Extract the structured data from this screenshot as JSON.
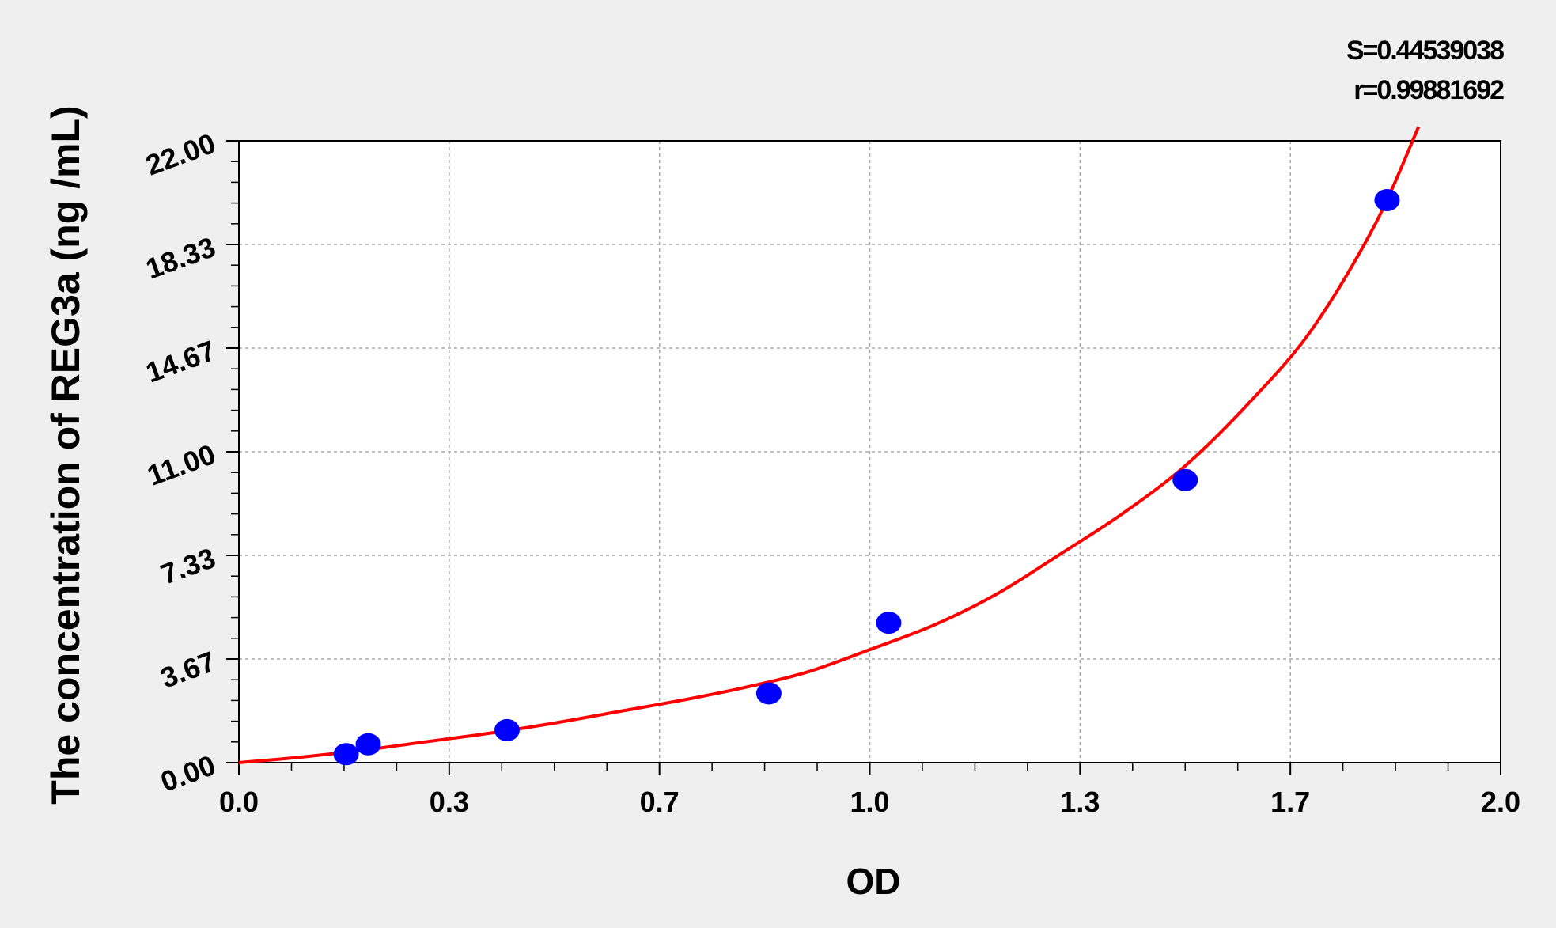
{
  "chart_data": {
    "type": "scatter",
    "title": "",
    "xlabel": "OD",
    "ylabel": "The concentration of REG3a (ng /mL)",
    "xlim": [
      0.0,
      2.0
    ],
    "ylim": [
      0.0,
      22.0
    ],
    "x_ticks": [
      "0.0",
      "0.3",
      "0.7",
      "1.0",
      "1.3",
      "1.7",
      "2.0"
    ],
    "y_ticks": [
      "0.00",
      "3.67",
      "7.33",
      "11.00",
      "14.67",
      "18.33",
      "22.00"
    ],
    "grid": true,
    "annotations": {
      "s_value": "S=0.44539038",
      "r_value": "r=0.99881692"
    },
    "series": [
      {
        "kind": "points",
        "color": "#0000ff",
        "points": [
          {
            "x": 0.17,
            "y": 0.3
          },
          {
            "x": 0.205,
            "y": 0.65
          },
          {
            "x": 0.425,
            "y": 1.15
          },
          {
            "x": 0.84,
            "y": 2.45
          },
          {
            "x": 1.03,
            "y": 4.95
          },
          {
            "x": 1.5,
            "y": 10.0
          },
          {
            "x": 1.82,
            "y": 19.9
          }
        ]
      },
      {
        "kind": "fit-curve",
        "color": "#ff0000",
        "points": [
          {
            "x": 0.0,
            "y": 0.0
          },
          {
            "x": 0.1,
            "y": 0.2
          },
          {
            "x": 0.2,
            "y": 0.45
          },
          {
            "x": 0.3,
            "y": 0.75
          },
          {
            "x": 0.4,
            "y": 1.05
          },
          {
            "x": 0.5,
            "y": 1.4
          },
          {
            "x": 0.6,
            "y": 1.8
          },
          {
            "x": 0.7,
            "y": 2.2
          },
          {
            "x": 0.8,
            "y": 2.65
          },
          {
            "x": 0.9,
            "y": 3.2
          },
          {
            "x": 1.0,
            "y": 4.0
          },
          {
            "x": 1.1,
            "y": 4.85
          },
          {
            "x": 1.2,
            "y": 5.95
          },
          {
            "x": 1.3,
            "y": 7.35
          },
          {
            "x": 1.4,
            "y": 8.8
          },
          {
            "x": 1.5,
            "y": 10.5
          },
          {
            "x": 1.6,
            "y": 12.7
          },
          {
            "x": 1.7,
            "y": 15.3
          },
          {
            "x": 1.8,
            "y": 19.0
          },
          {
            "x": 1.87,
            "y": 22.5
          }
        ]
      }
    ]
  }
}
